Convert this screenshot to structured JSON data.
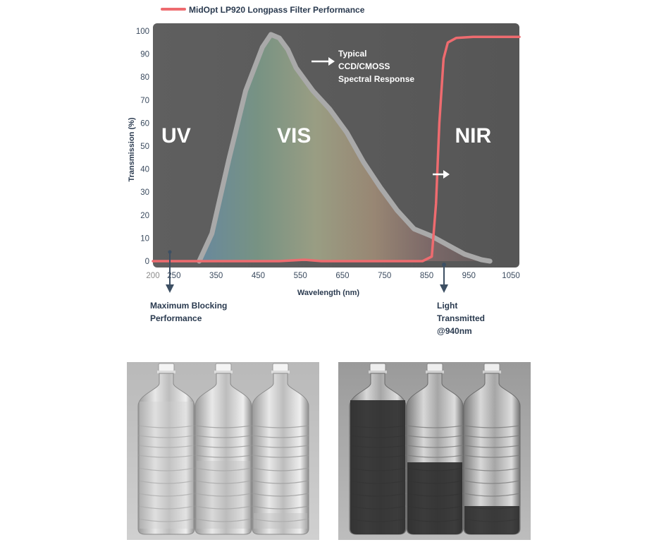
{
  "chart_data": {
    "type": "line",
    "legend": {
      "entries": [
        "MidOpt LP920 Longpass Filter Performance"
      ],
      "placement": "top"
    },
    "xlabel": "Wavelength (nm)",
    "ylabel": "Transmission (%)",
    "xlim": [
      200,
      1070
    ],
    "ylim": [
      0,
      100
    ],
    "x_ticks": [
      200,
      250,
      350,
      450,
      550,
      650,
      750,
      850,
      950,
      1050
    ],
    "y_ticks": [
      0,
      10,
      20,
      30,
      40,
      50,
      60,
      70,
      80,
      90,
      100
    ],
    "grid": false,
    "regions": [
      {
        "label": "UV",
        "x": 255
      },
      {
        "label": "VIS",
        "x": 535
      },
      {
        "label": "NIR",
        "x": 960
      }
    ],
    "series": [
      {
        "name": "MidOpt LP920 Longpass Filter Performance",
        "color": "#ee6b6f",
        "x": [
          200,
          300,
          500,
          560,
          600,
          840,
          862,
          872,
          880,
          890,
          900,
          920,
          960,
          1070
        ],
        "y": [
          0,
          0,
          0,
          0.6,
          0,
          0,
          2,
          25,
          60,
          88,
          95,
          97,
          97.5,
          97.5
        ]
      },
      {
        "name": "Typical CCD/CMOSS Spectral Response",
        "color": "#a9a9a9",
        "x": [
          310,
          340,
          380,
          420,
          460,
          480,
          500,
          520,
          540,
          580,
          620,
          660,
          700,
          740,
          780,
          820,
          860,
          900,
          940,
          980,
          1000
        ],
        "y": [
          0,
          12,
          44,
          74,
          93,
          98.5,
          97,
          92,
          84,
          74,
          66,
          56,
          43,
          32,
          22,
          14,
          11,
          7,
          3,
          0.6,
          0
        ]
      }
    ],
    "annotations": [
      {
        "text": [
          "Typical",
          "CCD/CMOSS",
          "Spectral Response"
        ]
      },
      {
        "text": [
          "Maximum Blocking",
          "Performance"
        ]
      },
      {
        "text": [
          "Light",
          "Transmitted",
          "@940nm"
        ]
      }
    ]
  },
  "colors": {
    "plot_background": "#5b5b5b",
    "filter_curve": "#ee6b6f",
    "sensor_curve": "#a9a9a9",
    "label_text": "#2a3a4f",
    "photo_background": "#c4c4c4"
  }
}
